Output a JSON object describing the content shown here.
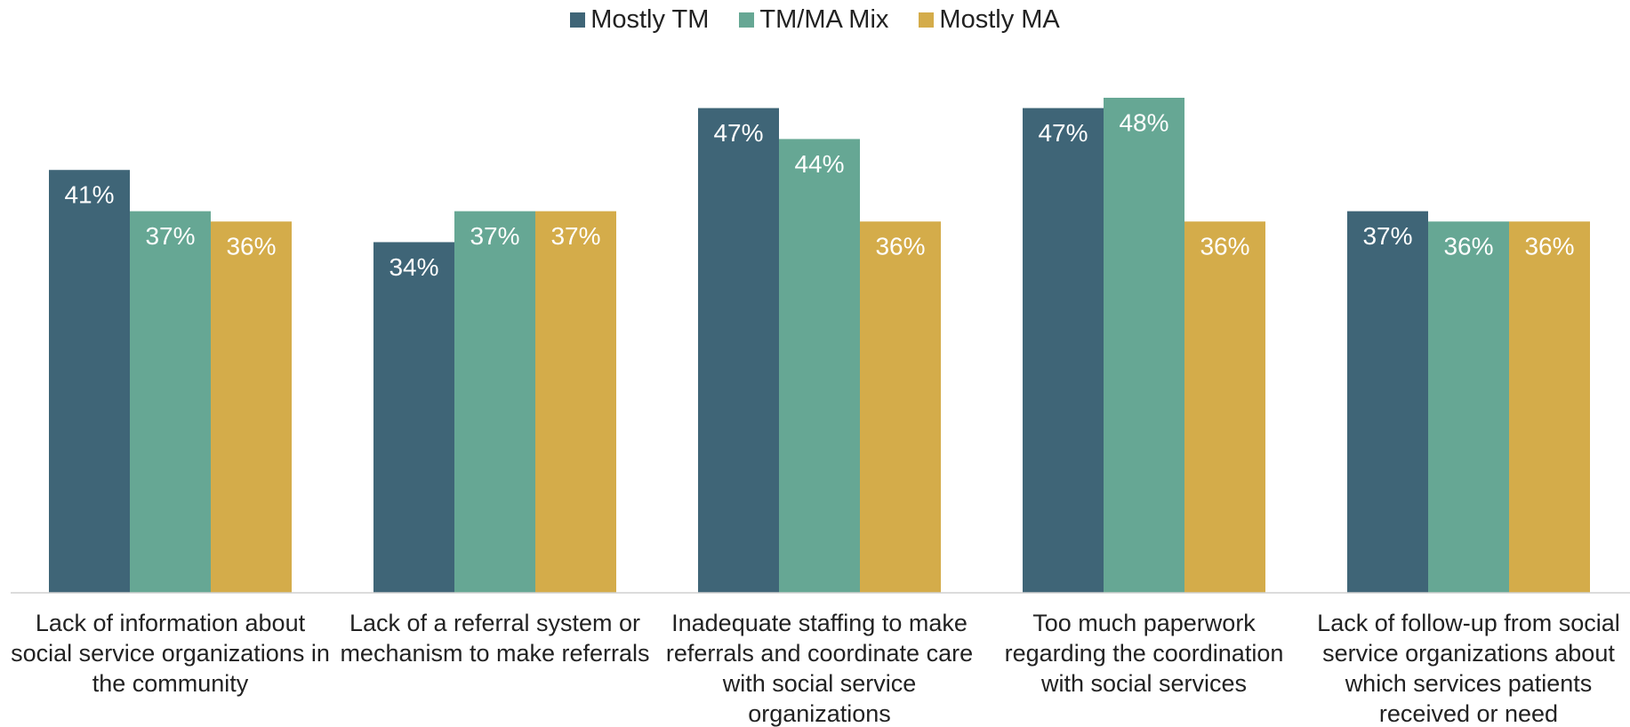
{
  "chart_data": {
    "type": "bar",
    "categories": [
      "Lack of information about social service organizations in the community",
      "Lack of a referral system or mechanism to make referrals",
      "Inadequate staffing to make referrals and coordinate care with social service organizations",
      "Too much paperwork regarding the coordination with social services",
      "Lack of follow-up from social service organizations about which services patients received or need"
    ],
    "series": [
      {
        "name": "Mostly TM",
        "color": "#3f6577",
        "values": [
          41,
          34,
          47,
          47,
          37
        ],
        "value_labels": [
          "41%",
          "34%",
          "47%",
          "47%",
          "37%"
        ]
      },
      {
        "name": "TM/MA Mix",
        "color": "#66a794",
        "values": [
          37,
          37,
          44,
          48,
          36
        ],
        "value_labels": [
          "37%",
          "37%",
          "44%",
          "48%",
          "36%"
        ]
      },
      {
        "name": "Mostly MA",
        "color": "#d4ac4a",
        "values": [
          36,
          37,
          36,
          36,
          36
        ],
        "value_labels": [
          "36%",
          "37%",
          "36%",
          "36%",
          "36%"
        ]
      }
    ],
    "legend": "top",
    "grid": false
  }
}
